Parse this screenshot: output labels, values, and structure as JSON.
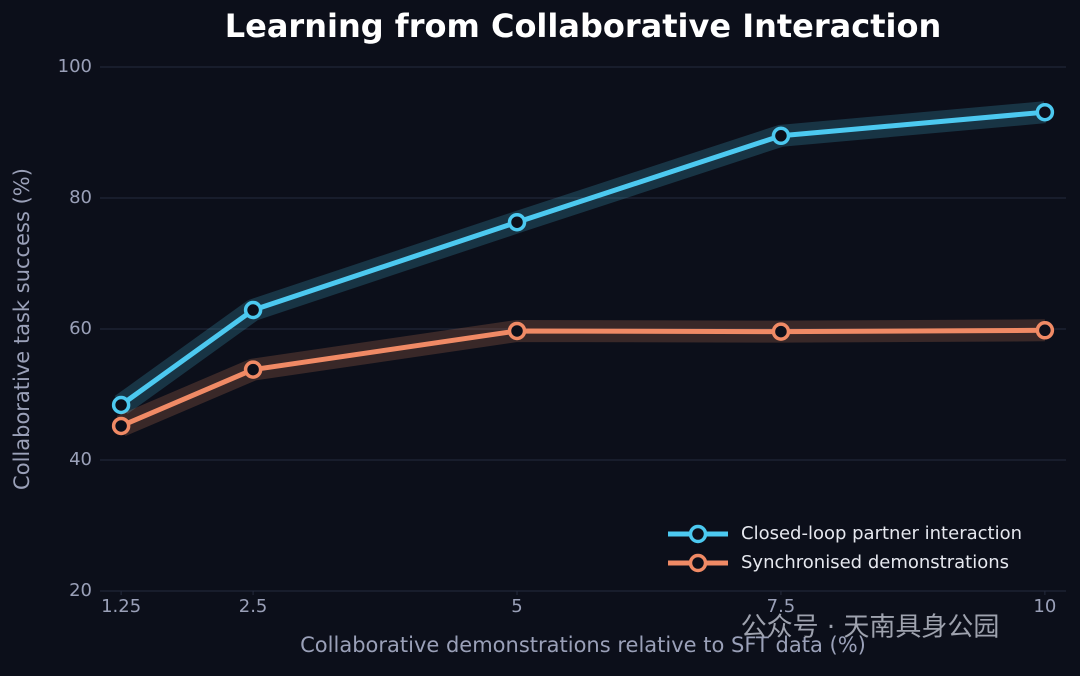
{
  "chart_data": {
    "type": "line",
    "title": "Learning from Collaborative Interaction",
    "x_label": "Collaborative demonstrations relative to SFT data (%)",
    "y_label": "Collaborative task success (%)",
    "x": [
      1.25,
      2.5,
      5,
      7.5,
      10
    ],
    "xlim": [
      1.05,
      10.2
    ],
    "xticks": [
      1.25,
      2.5,
      5,
      7.5,
      10
    ],
    "ylim": [
      20,
      100
    ],
    "yticks": [
      20,
      40,
      60,
      80,
      100
    ],
    "grid": true,
    "legend": "lower right",
    "series": [
      {
        "name": "Closed-loop partner interaction",
        "color": "#4cc9f0",
        "values": [
          48.4,
          62.9,
          76.3,
          89.5,
          93.1
        ]
      },
      {
        "name": "Synchronised demonstrations",
        "color": "#f08a65",
        "values": [
          45.2,
          53.8,
          59.7,
          59.6,
          59.8
        ]
      }
    ],
    "watermark": "公众号 · 天南具身公园"
  }
}
